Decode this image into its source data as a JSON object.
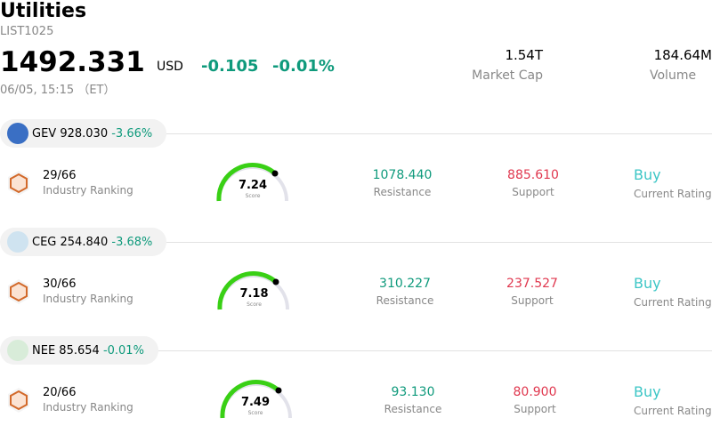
{
  "header": {
    "title": "Utilities",
    "code": "LIST1025",
    "price": "1492.331",
    "currency": "USD",
    "change": "-0.105",
    "change_pct": "-0.01%",
    "datetime": "06/05, 15:15 （ET）",
    "market_cap": "1.54T",
    "market_cap_label": "Market Cap",
    "volume": "184.64M",
    "volume_label": "Volume"
  },
  "stocks": [
    {
      "ticker": "GEV",
      "price": "928.030",
      "change_pct": "-3.66%",
      "rank": "29/66",
      "rank_label": "Industry Ranking",
      "score": "7.24",
      "score_label": "Score",
      "resistance": "1078.440",
      "resistance_label": "Resistance",
      "support": "885.610",
      "support_label": "Support",
      "rating": "Buy",
      "rating_label": "Current Rating"
    },
    {
      "ticker": "CEG",
      "price": "254.840",
      "change_pct": "-3.68%",
      "rank": "30/66",
      "rank_label": "Industry Ranking",
      "score": "7.18",
      "score_label": "Score",
      "resistance": "310.227",
      "resistance_label": "Resistance",
      "support": "237.527",
      "support_label": "Support",
      "rating": "Buy",
      "rating_label": "Current Rating"
    },
    {
      "ticker": "NEE",
      "price": "85.654",
      "change_pct": "-0.01%",
      "rank": "20/66",
      "rank_label": "Industry Ranking",
      "score": "7.49",
      "score_label": "Score",
      "resistance": "93.130",
      "resistance_label": "Resistance",
      "support": "80.900",
      "support_label": "Support",
      "rating": "Buy",
      "rating_label": "Current Rating"
    }
  ]
}
